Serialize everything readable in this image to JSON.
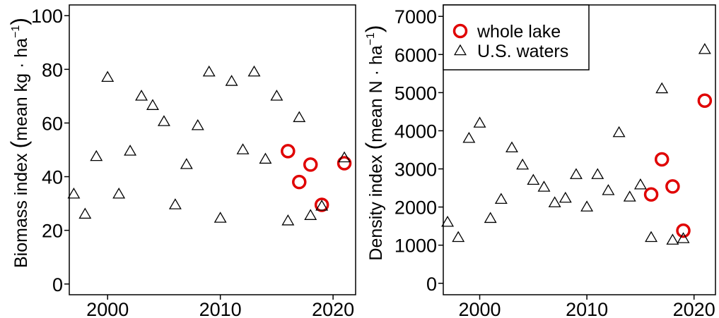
{
  "chart_data": [
    {
      "type": "scatter",
      "ylabel_main": "Biomass index ",
      "ylabel_unit": "mean kg · ha",
      "ylabel_sup": "−1",
      "xlim": [
        1996.6,
        2022.0
      ],
      "ylim": [
        -4,
        104
      ],
      "xticks": [
        2000,
        2010,
        2020
      ],
      "yticks": [
        0,
        20,
        40,
        60,
        80,
        100
      ],
      "series": [
        {
          "marker": "circle",
          "color": "#e00000",
          "points": [
            [
              2016,
              49.5
            ],
            [
              2017,
              38.0
            ],
            [
              2018,
              44.5
            ],
            [
              2019,
              29.5
            ],
            [
              2021,
              45.0
            ]
          ]
        },
        {
          "marker": "triangle",
          "color": "#000000",
          "points": [
            [
              1997,
              33.5
            ],
            [
              1998,
              26.0
            ],
            [
              1999,
              47.5
            ],
            [
              2000,
              77.0
            ],
            [
              2001,
              33.5
            ],
            [
              2002,
              49.5
            ],
            [
              2003,
              70.0
            ],
            [
              2004,
              66.5
            ],
            [
              2005,
              60.5
            ],
            [
              2006,
              29.5
            ],
            [
              2007,
              44.5
            ],
            [
              2008,
              59.0
            ],
            [
              2009,
              79.0
            ],
            [
              2010,
              24.5
            ],
            [
              2011,
              75.5
            ],
            [
              2012,
              50.0
            ],
            [
              2013,
              79.0
            ],
            [
              2014,
              46.5
            ],
            [
              2015,
              70.0
            ],
            [
              2016,
              23.5
            ],
            [
              2017,
              62.0
            ],
            [
              2018,
              25.5
            ],
            [
              2019,
              29.0
            ],
            [
              2021,
              47.0
            ]
          ]
        }
      ]
    },
    {
      "type": "scatter",
      "ylabel_main": "Density index ",
      "ylabel_unit": "mean N · ha",
      "ylabel_sup": "−1",
      "xlim": [
        1996.6,
        2022.0
      ],
      "ylim": [
        -300,
        7300
      ],
      "xticks": [
        2000,
        2010,
        2020
      ],
      "yticks": [
        0,
        1000,
        2000,
        3000,
        4000,
        5000,
        6000,
        7000
      ],
      "legend": {
        "position": "top-left",
        "entries": [
          {
            "label": "whole lake",
            "marker": "circle"
          },
          {
            "label": "U.S. waters",
            "marker": "triangle"
          }
        ]
      },
      "series": [
        {
          "name": "whole lake",
          "marker": "circle",
          "color": "#e00000",
          "points": [
            [
              2016,
              2330
            ],
            [
              2017,
              3250
            ],
            [
              2018,
              2540
            ],
            [
              2019,
              1380
            ],
            [
              2021,
              4790
            ]
          ]
        },
        {
          "name": "U.S. waters",
          "marker": "triangle",
          "color": "#000000",
          "points": [
            [
              1997,
              1600
            ],
            [
              1998,
              1200
            ],
            [
              1999,
              3800
            ],
            [
              2000,
              4200
            ],
            [
              2001,
              1700
            ],
            [
              2002,
              2200
            ],
            [
              2003,
              3550
            ],
            [
              2004,
              3100
            ],
            [
              2005,
              2700
            ],
            [
              2006,
              2520
            ],
            [
              2007,
              2110
            ],
            [
              2008,
              2230
            ],
            [
              2009,
              2850
            ],
            [
              2010,
              2000
            ],
            [
              2011,
              2850
            ],
            [
              2012,
              2430
            ],
            [
              2013,
              3950
            ],
            [
              2014,
              2260
            ],
            [
              2015,
              2580
            ],
            [
              2016,
              1200
            ],
            [
              2017,
              5100
            ],
            [
              2018,
              1130
            ],
            [
              2019,
              1170
            ],
            [
              2021,
              6130
            ]
          ]
        }
      ]
    }
  ]
}
